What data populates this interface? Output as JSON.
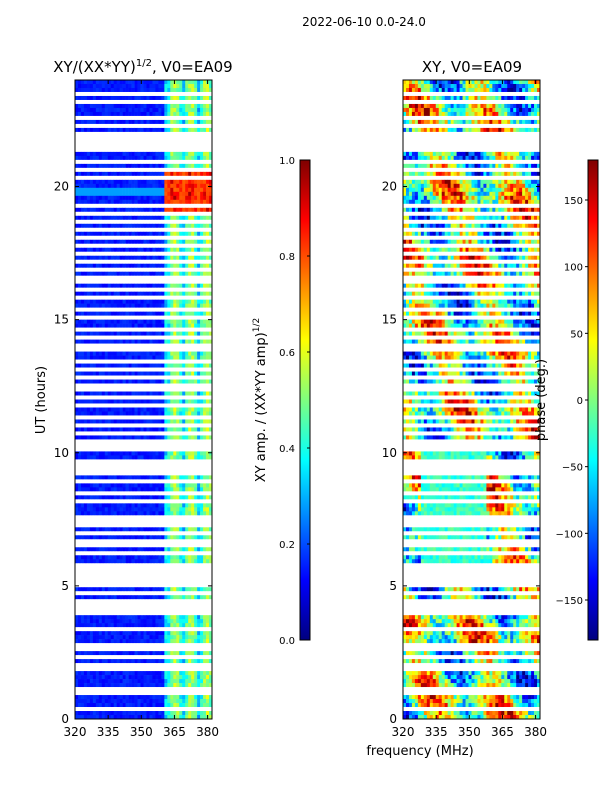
{
  "figure_title": "2022-06-10 0.0-24.0",
  "xlabel_shared": "frequency (MHz)",
  "colors": {
    "jet": [
      "#00007f",
      "#0000ff",
      "#007fff",
      "#00ffff",
      "#7fff7f",
      "#ffff00",
      "#ff7f00",
      "#ff0000",
      "#7f0000"
    ]
  },
  "chart_data": [
    {
      "type": "heatmap",
      "title": "XY/(XX*YY)^{1/2}, V0=EA09",
      "title_main": "XY/(XX*YY)",
      "title_sup": "1/2",
      "title_tail": ", V0=EA09",
      "xlabel": "",
      "ylabel": "UT (hours)",
      "xlim": [
        320,
        382
      ],
      "ylim": [
        0,
        24
      ],
      "xticks": [
        320,
        335,
        350,
        365,
        380
      ],
      "xtick_labels": [
        "320",
        "335",
        "350",
        "365",
        "380"
      ],
      "yticks": [
        0,
        5,
        10,
        15,
        20
      ],
      "ytick_labels": [
        "0",
        "5",
        "10",
        "15",
        "20"
      ],
      "colorbar": {
        "label": "XY amp. / (XX*YY amp)^{1/2}",
        "label_main": "XY amp. / (XX*YY amp)",
        "label_sup": "1/2",
        "range": [
          0.0,
          1.0
        ],
        "ticks": [
          0.0,
          0.2,
          0.4,
          0.6,
          0.8,
          1.0
        ],
        "tick_labels": [
          "0.0",
          "0.2",
          "0.4",
          "0.6",
          "0.8",
          "1.0"
        ]
      }
    },
    {
      "type": "heatmap",
      "title": "XY, V0=EA09",
      "xlabel": "frequency (MHz)",
      "ylabel": "",
      "xlim": [
        320,
        382
      ],
      "ylim": [
        0,
        24
      ],
      "xticks": [
        320,
        335,
        350,
        365,
        380
      ],
      "xtick_labels": [
        "320",
        "335",
        "350",
        "365",
        "380"
      ],
      "yticks": [
        0,
        5,
        10,
        15,
        20
      ],
      "ytick_labels": [
        "0",
        "5",
        "10",
        "15",
        "20"
      ],
      "colorbar": {
        "label": "phase (deg.)",
        "range": [
          -180,
          180
        ],
        "ticks": [
          -150,
          -100,
          -50,
          0,
          50,
          100,
          150
        ],
        "tick_labels": [
          "−150",
          "−100",
          "−50",
          "0",
          "50",
          "100",
          "150"
        ]
      }
    }
  ],
  "flagged_hours": [
    0.35,
    0.9,
    1.05,
    1.8,
    2.05,
    2.35,
    2.55,
    2.8,
    3.3,
    3.9,
    4.15,
    4.3,
    4.45,
    4.7,
    5.1,
    5.35,
    5.55,
    5.75,
    6.15,
    6.6,
    6.95,
    7.35,
    7.6,
    8.15,
    8.5,
    8.85,
    9.2,
    9.45,
    9.7,
    10.05,
    10.2,
    10.45,
    10.65,
    11.05,
    11.35,
    11.75,
    12.05,
    12.3,
    12.55,
    12.75,
    13.15,
    13.45,
    13.8,
    14.0,
    14.3,
    14.6,
    15.0,
    15.4,
    15.75,
    16.1,
    16.35,
    16.6,
    16.85,
    17.1,
    17.4,
    17.7,
    18.0,
    18.3,
    18.6,
    18.9,
    19.3,
    20.35,
    20.6,
    20.95,
    21.4,
    21.55,
    21.75,
    21.95,
    22.3,
    22.6,
    23.1,
    23.5
  ],
  "flagged_bands": [
    [
      21.55,
      22.05
    ]
  ]
}
